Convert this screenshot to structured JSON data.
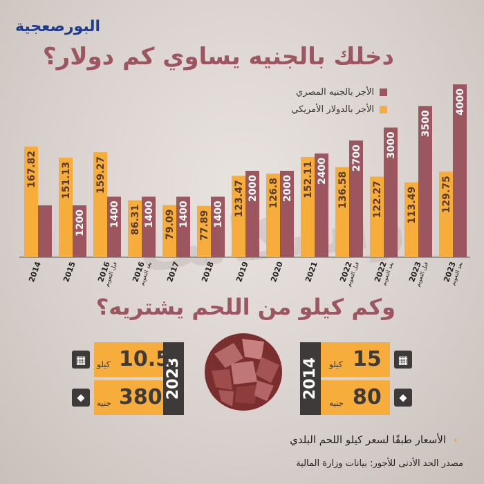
{
  "brand": {
    "logo_text": "البورصعجية"
  },
  "title": "دخلك بالجنيه يساوي كم دولار؟",
  "legend": [
    {
      "label": "الأجر بالجنيه المصري",
      "color": "#9b5660"
    },
    {
      "label": "الأجر بالدولار الأمريكي",
      "color": "#f7ad3b"
    }
  ],
  "chart_data": {
    "type": "bar",
    "categories": [
      {
        "year": "2014",
        "note": ""
      },
      {
        "year": "2015",
        "note": ""
      },
      {
        "year": "2016",
        "note": "قبل التعويم"
      },
      {
        "year": "2016",
        "note": "بعد التعويم"
      },
      {
        "year": "2017",
        "note": ""
      },
      {
        "year": "2018",
        "note": ""
      },
      {
        "year": "2019",
        "note": ""
      },
      {
        "year": "2020",
        "note": ""
      },
      {
        "year": "2021",
        "note": ""
      },
      {
        "year": "2022",
        "note": "قبل التعويم"
      },
      {
        "year": "2022",
        "note": "بعد التعويم"
      },
      {
        "year": "2023",
        "note": "قبل التعويم"
      },
      {
        "year": "2023",
        "note": "بعد التعويم"
      }
    ],
    "series": [
      {
        "name": "الأجر بالجنيه المصري",
        "color": "#9b5660",
        "values": [
          1200,
          1200,
          1400,
          1400,
          1400,
          1400,
          2000,
          2000,
          2400,
          2700,
          3000,
          3500,
          4000
        ],
        "labels": [
          "",
          "1200",
          "1400",
          "1400",
          "1400",
          "1400",
          "2000",
          "2000",
          "2400",
          "2700",
          "3000",
          "3500",
          "4000"
        ]
      },
      {
        "name": "الأجر بالدولار الأمريكي",
        "color": "#f7ad3b",
        "values": [
          167.82,
          151.13,
          159.27,
          86.31,
          79.09,
          77.89,
          123.47,
          126.8,
          152.11,
          136.58,
          122.27,
          113.49,
          129.75
        ],
        "labels": [
          "167.82",
          "151.13",
          "159.27",
          "86.31",
          "79.09",
          "77.89",
          "123.47",
          "126.8",
          "152.11",
          "136.58",
          "122.27",
          "113.49",
          "129.75"
        ]
      }
    ]
  },
  "subtitle": "وكم كيلو من اللحم يشتريه؟",
  "cards": [
    {
      "year": "2014",
      "kilos": "15",
      "kilos_unit": "كيلو",
      "price": "80",
      "price_unit": "جنيه"
    },
    {
      "year": "2023",
      "kilos": "10.5",
      "kilos_unit": "كيلو",
      "price": "380",
      "price_unit": "جنيه"
    }
  ],
  "notes": {
    "prices_note": "الأسعار طبقًا لسعر كيلو اللحم البلدي",
    "source": "مصدر الحد الأدنى للأجور: بيانات وزارة المالية"
  },
  "watermark": "راشكاتب",
  "icons": {
    "calculator": "calculator-icon",
    "price_tag": "price-tag-icon",
    "arrow": "chevron-left-icon"
  }
}
